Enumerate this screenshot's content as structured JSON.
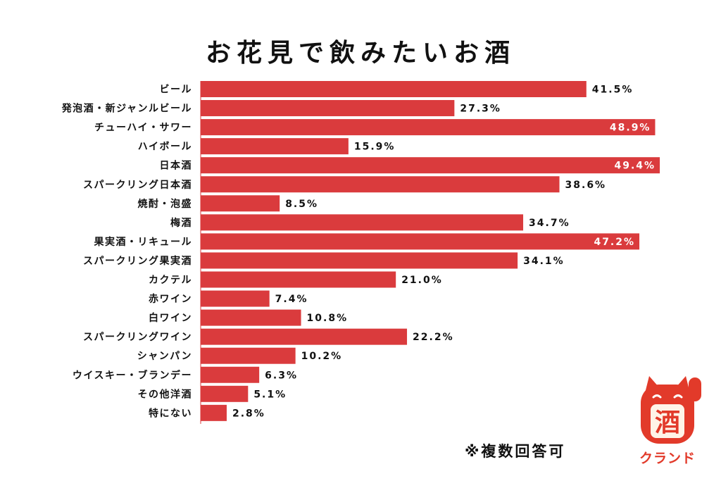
{
  "chart_data": {
    "type": "bar",
    "orientation": "horizontal",
    "title": "お花見で飲みたいお酒",
    "categories": [
      "ビール",
      "発泡酒・新ジャンルビール",
      "チューハイ・サワー",
      "ハイボール",
      "日本酒",
      "スパークリング日本酒",
      "焼酎・泡盛",
      "梅酒",
      "果実酒・リキュール",
      "スパークリング果実酒",
      "カクテル",
      "赤ワイン",
      "白ワイン",
      "スパークリングワイン",
      "シャンパン",
      "ウイスキー・ブランデー",
      "その他洋酒",
      "特にない"
    ],
    "values": [
      41.5,
      27.3,
      48.9,
      15.9,
      49.4,
      38.6,
      8.5,
      34.7,
      47.2,
      34.1,
      21.0,
      7.4,
      10.8,
      22.2,
      10.2,
      6.3,
      5.1,
      2.8
    ],
    "value_labels": [
      "41.5%",
      "27.3%",
      "48.9%",
      "15.9%",
      "49.4%",
      "38.6%",
      "8.5%",
      "34.7%",
      "47.2%",
      "34.1%",
      "21.0%",
      "7.4%",
      "10.8%",
      "22.2%",
      "10.2%",
      "6.3%",
      "5.1%",
      "2.8%"
    ],
    "inside_labels": [
      false,
      false,
      true,
      false,
      true,
      false,
      false,
      false,
      true,
      false,
      false,
      false,
      false,
      false,
      false,
      false,
      false,
      false
    ],
    "xlim": [
      0,
      50
    ],
    "grid": false,
    "legend": "none",
    "xlabel": "",
    "ylabel": ""
  },
  "footnote": "※複数回答可",
  "logo": {
    "kanji": "酒",
    "word": "クランド",
    "icon": "maneki-neko-cat-icon"
  },
  "colors": {
    "bar": "#da3b3d",
    "text": "#111111",
    "inside_label": "#ffffff",
    "logo": "#e23a2a"
  }
}
